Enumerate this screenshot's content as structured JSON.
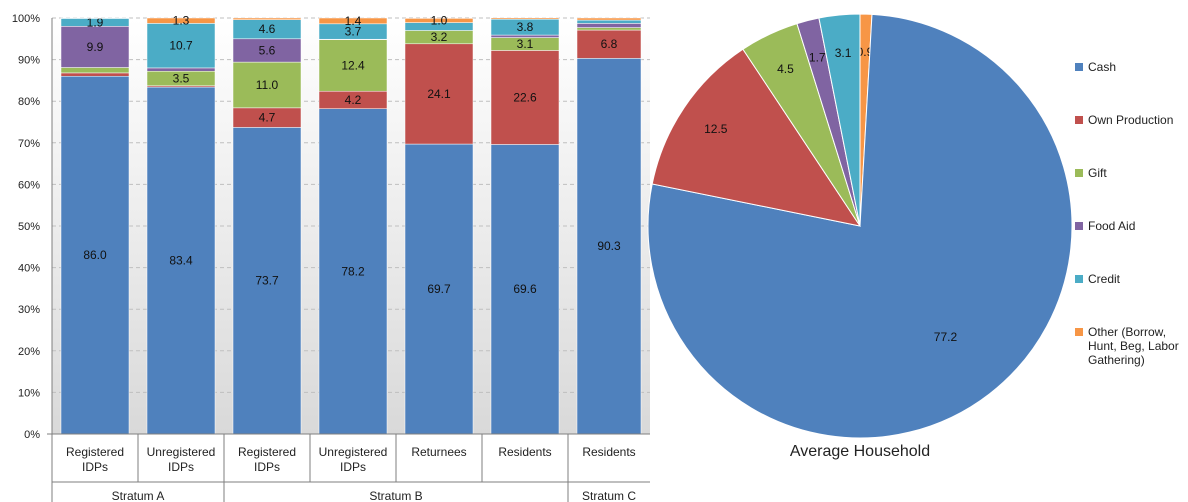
{
  "chart_data": [
    {
      "type": "bar",
      "stacked": true,
      "ylim": [
        0,
        100
      ],
      "ytick_labels": [
        "0%",
        "10%",
        "20%",
        "30%",
        "40%",
        "50%",
        "60%",
        "70%",
        "80%",
        "90%",
        "100%"
      ],
      "categories": [
        "Registered IDPs",
        "Unregistered IDPs",
        "Registered IDPs",
        "Unregistered IDPs",
        "Returnees",
        "Residents",
        "Residents"
      ],
      "groups": [
        {
          "label": "Stratum A",
          "categories": [
            0,
            1
          ]
        },
        {
          "label": "Stratum B",
          "categories": [
            2,
            3,
            4,
            5
          ]
        },
        {
          "label": "Stratum C",
          "categories": [
            6
          ]
        }
      ],
      "series": [
        {
          "name": "Cash",
          "color": "#4f81bd",
          "values": [
            86.0,
            83.4,
            73.7,
            78.2,
            69.7,
            69.6,
            90.3
          ],
          "labels": [
            "86.0",
            "83.4",
            "73.7",
            "78.2",
            "69.7",
            "69.6",
            "90.3"
          ]
        },
        {
          "name": "Own Production",
          "color": "#c0504d",
          "values": [
            0.8,
            0.3,
            4.7,
            4.2,
            24.1,
            22.6,
            6.8
          ],
          "labels": [
            "",
            "",
            "4.7",
            "4.2",
            "24.1",
            "22.6",
            "6.8"
          ]
        },
        {
          "name": "Gift",
          "color": "#9bbb59",
          "values": [
            1.3,
            3.5,
            11.0,
            12.4,
            3.2,
            3.1,
            0.6
          ],
          "labels": [
            "",
            "3.5",
            "11.0",
            "12.4",
            "3.2",
            "3.1",
            ""
          ]
        },
        {
          "name": "Food Aid",
          "color": "#8064a2",
          "values": [
            9.9,
            0.8,
            5.6,
            0.1,
            0.0,
            0.6,
            1.0
          ],
          "labels": [
            "9.9",
            "",
            "5.6",
            "",
            "",
            "",
            ""
          ]
        },
        {
          "name": "Credit",
          "color": "#4bacc6",
          "values": [
            1.9,
            10.7,
            4.6,
            3.7,
            1.9,
            3.8,
            0.8
          ],
          "labels": [
            "1.9",
            "10.7",
            "4.6",
            "3.7",
            "",
            "3.8",
            ""
          ]
        },
        {
          "name": "Other (Borrow, Hunt, Beg, Labor Gathering)",
          "color": "#f79646",
          "values": [
            0.1,
            1.3,
            0.4,
            1.4,
            1.0,
            0.3,
            0.5
          ],
          "labels": [
            "",
            "1.3",
            "",
            "1.4",
            "1.0",
            "",
            ""
          ]
        }
      ]
    },
    {
      "type": "pie",
      "title": "Average Household",
      "start": "12 o'clock, clockwise",
      "slices": [
        {
          "name": "Other (Borrow, Hunt, Beg, Labor Gathering)",
          "value": 0.9,
          "label": "0.9",
          "color": "#f79646"
        },
        {
          "name": "Cash",
          "value": 77.2,
          "label": "77.2",
          "color": "#4f81bd"
        },
        {
          "name": "Own Production",
          "value": 12.5,
          "label": "12.5",
          "color": "#c0504d"
        },
        {
          "name": "Gift",
          "value": 4.5,
          "label": "4.5",
          "color": "#9bbb59"
        },
        {
          "name": "Food Aid",
          "value": 1.7,
          "label": "1.7",
          "color": "#8064a2"
        },
        {
          "name": "Credit",
          "value": 3.1,
          "label": "3.1",
          "color": "#4bacc6"
        }
      ]
    }
  ],
  "legend": {
    "placement": "right",
    "items": [
      {
        "label": "Cash",
        "color": "#4f81bd"
      },
      {
        "label": "Own Production",
        "color": "#c0504d"
      },
      {
        "label": "Gift",
        "color": "#9bbb59"
      },
      {
        "label": "Food Aid",
        "color": "#8064a2"
      },
      {
        "label": "Credit",
        "color": "#4bacc6"
      },
      {
        "label": "Other (Borrow, Hunt, Beg, Labor Gathering)",
        "color": "#f79646"
      }
    ]
  }
}
